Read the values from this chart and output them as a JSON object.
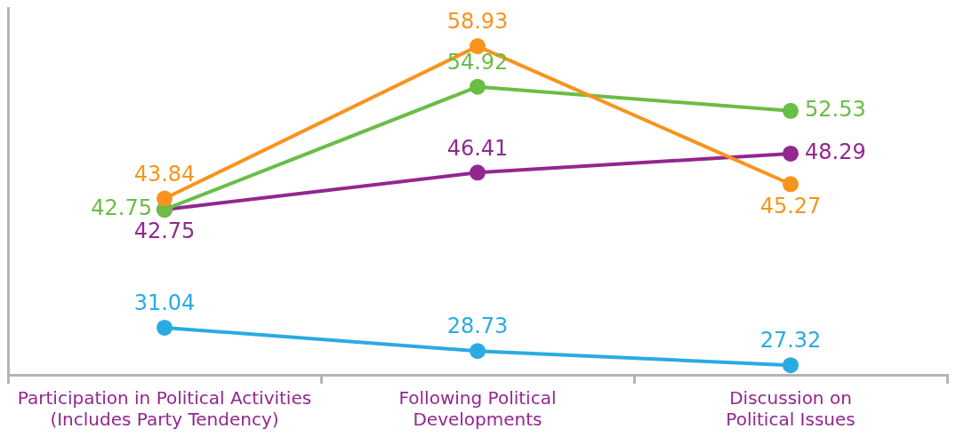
{
  "chart_data": {
    "type": "line",
    "relative": false,
    "categories": [
      "Participation in Political Activities (Includes Party Tendency)",
      "Following Political Developments",
      "Discussion on Political Issues"
    ],
    "series": [
      {
        "color": "#f7941d",
        "values": [
          43.84,
          58.93,
          45.27
        ]
      },
      {
        "color": "#6abd45",
        "values": [
          42.75,
          54.92,
          52.53
        ]
      },
      {
        "color": "#92278f",
        "values": [
          42.75,
          46.41,
          48.29
        ]
      },
      {
        "color": "#29abe2",
        "values": [
          31.04,
          28.73,
          27.32
        ]
      }
    ],
    "data_labels": true,
    "marker": "circle",
    "line_style": "solid",
    "grid": false,
    "legend": false,
    "tick_labels": "x"
  }
}
